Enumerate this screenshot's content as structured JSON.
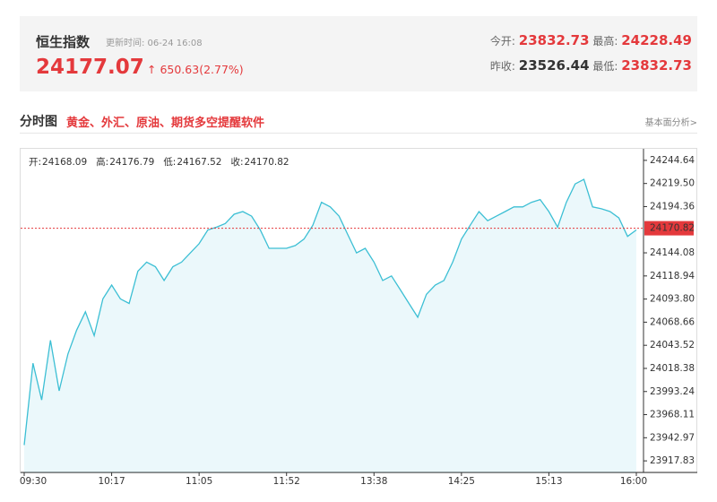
{
  "header": {
    "title": "恒生指数",
    "update_time": "更新时间: 06-24 16:08",
    "price": "24177.07",
    "change": "650.63(2.77%)",
    "stats": [
      {
        "label": "今开:",
        "value": "23832.73"
      },
      {
        "label": "最高:",
        "value": "24228.49"
      },
      {
        "label": "昨收:",
        "value": "23526.44"
      },
      {
        "label": "最低:",
        "value": "23832.73"
      }
    ]
  },
  "section": {
    "title": "分时图",
    "promo": "黄金、外汇、原油、期货多空提醒软件",
    "link": "基本面分析>"
  },
  "chart_data": {
    "type": "line",
    "ohlc": [
      {
        "label": "开:",
        "value": 24168.09
      },
      {
        "label": "高:",
        "value": 24176.79
      },
      {
        "label": "低:",
        "value": 24167.52
      },
      {
        "label": "收:",
        "value": 24170.82
      }
    ],
    "categories": [
      "09:30",
      null,
      null,
      null,
      null,
      null,
      null,
      null,
      null,
      null,
      "10:17",
      null,
      null,
      null,
      null,
      null,
      null,
      null,
      null,
      null,
      "11:05",
      null,
      null,
      null,
      null,
      null,
      null,
      null,
      null,
      null,
      "11:52",
      null,
      null,
      null,
      null,
      null,
      null,
      null,
      null,
      null,
      "13:38",
      null,
      null,
      null,
      null,
      null,
      null,
      null,
      null,
      null,
      "14:25",
      null,
      null,
      null,
      null,
      null,
      null,
      null,
      null,
      null,
      "15:13",
      null,
      null,
      null,
      null,
      null,
      null,
      null,
      null,
      null,
      "16:00"
    ],
    "series": [
      {
        "color": "#3cbfd4",
        "values": [
          23935,
          24024,
          23984,
          24049,
          23994,
          24034,
          24060,
          24080,
          24054,
          24094,
          24109,
          24094,
          24089,
          24124,
          24134,
          24129,
          24114,
          24129,
          24134,
          24144,
          24154,
          24169,
          24172,
          24176,
          24186,
          24189,
          24184,
          24169,
          24149,
          24149,
          24149,
          24152,
          24159,
          24174,
          24199,
          24194,
          24184,
          24164,
          24144,
          24149,
          24134,
          24114,
          24119,
          24104,
          24089,
          24074,
          24099,
          24109,
          24114,
          24134,
          24159,
          24174,
          24189,
          24179,
          24184,
          24189,
          24194,
          24194,
          24199,
          24202,
          24189,
          24172,
          24199,
          24219,
          24224,
          24194,
          24192,
          24189,
          24182,
          24162,
          24169
        ]
      }
    ],
    "ylim": [
      23905.26,
      24257.21
    ],
    "yticks": [
      24244.64,
      {
        "value": 24219.5,
        "label": "24219.50"
      },
      24194.36,
      24144.08,
      24118.94,
      {
        "value": 24093.8,
        "label": "24093.80"
      },
      24068.66,
      24043.52,
      24018.38,
      23993.24,
      23968.11,
      23942.97,
      23917.83
    ],
    "reference_color": "#e4393c"
  }
}
